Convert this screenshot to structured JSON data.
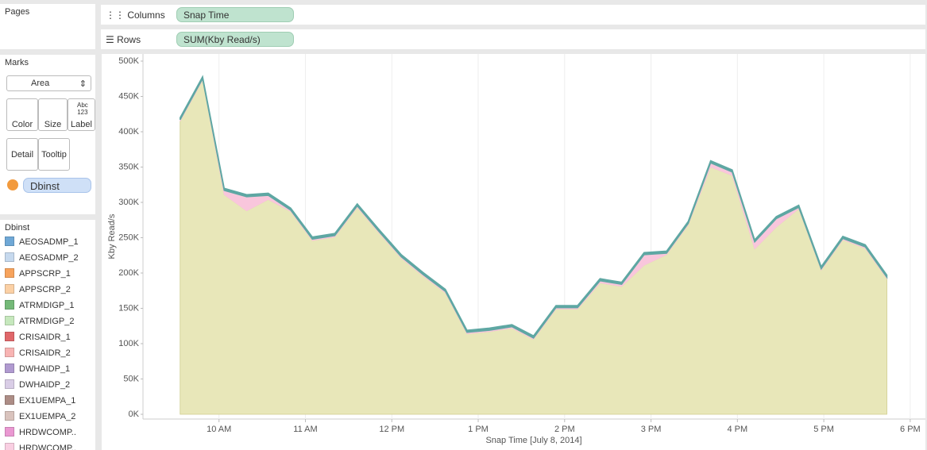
{
  "pages": {
    "title": "Pages"
  },
  "shelves": {
    "columns": {
      "label": "Columns",
      "pill": "Snap Time"
    },
    "rows": {
      "label": "Rows",
      "pill": "SUM(Kby Read/s)"
    }
  },
  "marks": {
    "title": "Marks",
    "type_select": "Area",
    "label_icon": [
      "Abc",
      "123"
    ],
    "buttons": [
      "Color",
      "Size",
      "Label",
      "Detail",
      "Tooltip"
    ],
    "pill": "Dbinst"
  },
  "legend": {
    "title": "Dbinst",
    "items": [
      {
        "label": "AEOSADMP_1",
        "color": "#6fa8d6"
      },
      {
        "label": "AEOSADMP_2",
        "color": "#c6d9ee"
      },
      {
        "label": "APPSCRP_1",
        "color": "#f7a35c"
      },
      {
        "label": "APPSCRP_2",
        "color": "#fbd0a5"
      },
      {
        "label": "ATRMDIGP_1",
        "color": "#74b978"
      },
      {
        "label": "ATRMDIGP_2",
        "color": "#c6e8bd"
      },
      {
        "label": "CRISAIDR_1",
        "color": "#e0676a"
      },
      {
        "label": "CRISAIDR_2",
        "color": "#f8b4b3"
      },
      {
        "label": "DWHAIDP_1",
        "color": "#b09ad0"
      },
      {
        "label": "DWHAIDP_2",
        "color": "#d9cde6"
      },
      {
        "label": "EX1UEMPA_1",
        "color": "#ad8d86"
      },
      {
        "label": "EX1UEMPA_2",
        "color": "#d9c3bd"
      },
      {
        "label": "HRDWCOMP..",
        "color": "#ea98d2"
      },
      {
        "label": "HRDWCOMP..",
        "color": "#f9cfe2"
      }
    ]
  },
  "chart_data": {
    "type": "area",
    "stacked": true,
    "x_label": "Snap Time [July 8, 2014]",
    "y_label": "Kby Read/s",
    "x": [
      9.55,
      9.81,
      10.06,
      10.32,
      10.57,
      10.83,
      11.08,
      11.34,
      11.6,
      11.85,
      12.11,
      12.36,
      12.62,
      12.87,
      13.13,
      13.39,
      13.64,
      13.9,
      14.15,
      14.41,
      14.66,
      14.92,
      15.18,
      15.43,
      15.69,
      15.94,
      16.2,
      16.45,
      16.71,
      16.97,
      17.22,
      17.48,
      17.73
    ],
    "xlim": [
      9.12,
      18.13
    ],
    "xticks": [
      {
        "value": 10,
        "label": "10 AM"
      },
      {
        "value": 11,
        "label": "11 AM"
      },
      {
        "value": 12,
        "label": "12 PM"
      },
      {
        "value": 13,
        "label": "1 PM"
      },
      {
        "value": 14,
        "label": "2 PM"
      },
      {
        "value": 15,
        "label": "3 PM"
      },
      {
        "value": 16,
        "label": "4 PM"
      },
      {
        "value": 17,
        "label": "5 PM"
      },
      {
        "value": 18,
        "label": "6 PM"
      }
    ],
    "ylim": [
      0,
      500000
    ],
    "yticks": [
      {
        "value": 0,
        "label": "0K"
      },
      {
        "value": 50000,
        "label": "50K"
      },
      {
        "value": 100000,
        "label": "100K"
      },
      {
        "value": 150000,
        "label": "150K"
      },
      {
        "value": 200000,
        "label": "200K"
      },
      {
        "value": 250000,
        "label": "250K"
      },
      {
        "value": 300000,
        "label": "300K"
      },
      {
        "value": 350000,
        "label": "350K"
      },
      {
        "value": 400000,
        "label": "400K"
      },
      {
        "value": 450000,
        "label": "450K"
      },
      {
        "value": 500000,
        "label": "500K"
      }
    ],
    "grid": "x",
    "series": [
      {
        "color": "#e8e7b9",
        "values": [
          415000,
          473000,
          311000,
          288000,
          304000,
          287000,
          246000,
          251000,
          293000,
          257000,
          221000,
          196000,
          172000,
          114000,
          117000,
          122000,
          106000,
          149000,
          149000,
          186000,
          181000,
          211000,
          226000,
          268000,
          350000,
          338000,
          234000,
          265000,
          291000,
          204000,
          247000,
          235000,
          192000
        ]
      },
      {
        "color": "#f9c6dc",
        "values": [
          2000,
          2000,
          6000,
          20000,
          6000,
          2000,
          2000,
          2000,
          2000,
          2000,
          2000,
          2000,
          2000,
          2000,
          2000,
          2000,
          2000,
          2000,
          2000,
          3000,
          3000,
          15000,
          2000,
          2000,
          6000,
          5000,
          10000,
          12000,
          2000,
          2000,
          2000,
          2000,
          2000
        ]
      },
      {
        "color": "#5ea7a3",
        "values": [
          3000,
          3000,
          3000,
          3000,
          3000,
          3000,
          3000,
          3000,
          3000,
          3000,
          3000,
          3000,
          3000,
          3000,
          3000,
          3000,
          3000,
          3000,
          3000,
          3000,
          3000,
          3000,
          3000,
          3000,
          3000,
          3000,
          3000,
          3000,
          3000,
          3000,
          3000,
          3000,
          3000
        ]
      }
    ]
  }
}
